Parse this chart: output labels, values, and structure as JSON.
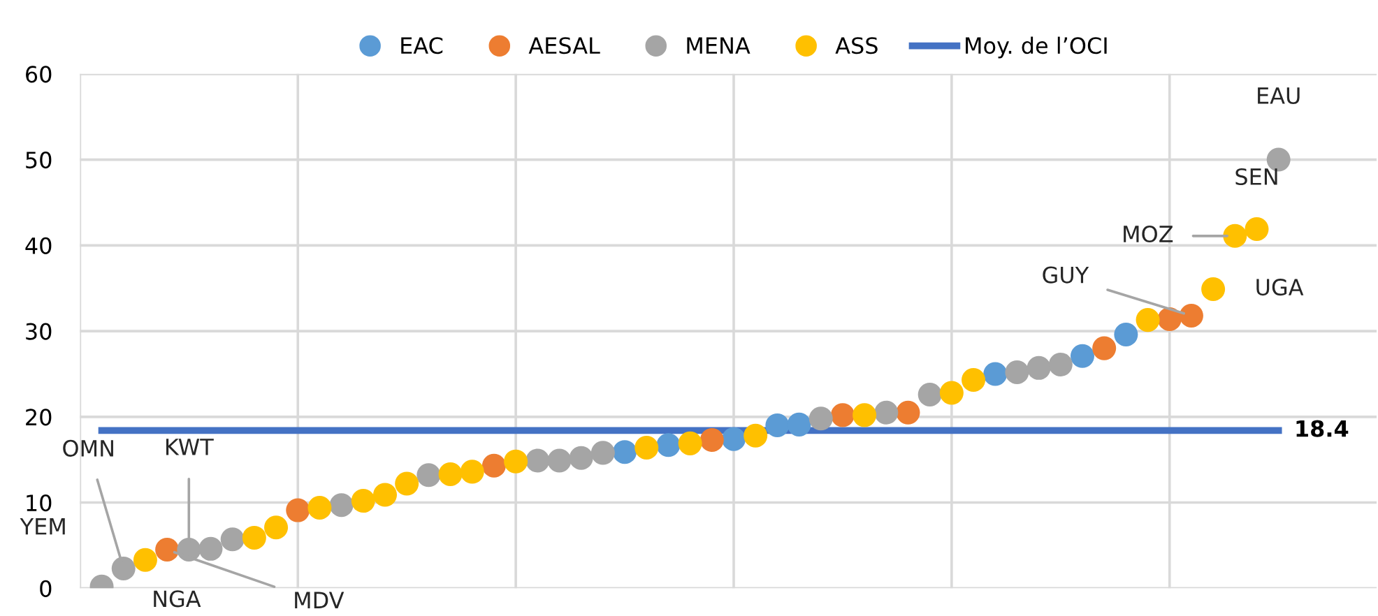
{
  "chart_data": {
    "type": "scatter",
    "marker": "circle",
    "grid": true,
    "legend": "top",
    "categories": [
      null,
      null,
      null,
      null,
      null,
      null,
      null,
      null,
      null,
      null,
      null,
      null,
      null,
      null,
      null,
      null,
      null,
      null,
      null,
      null,
      null,
      null,
      null,
      null,
      null,
      null,
      null,
      null,
      null,
      null,
      null,
      null,
      null,
      null,
      null,
      null,
      null,
      null,
      null,
      null,
      null,
      null,
      null,
      null,
      null,
      null,
      null,
      null,
      null,
      null,
      null,
      null,
      null,
      null,
      null
    ],
    "ylim": [
      0,
      60
    ],
    "yticks": [
      0,
      10,
      20,
      30,
      40,
      50,
      60
    ],
    "series": [
      {
        "name": "EAC",
        "color": "#5b9bd5",
        "values": [
          null,
          null,
          null,
          null,
          null,
          null,
          null,
          null,
          null,
          null,
          null,
          null,
          null,
          null,
          null,
          null,
          null,
          null,
          null,
          null,
          null,
          null,
          null,
          null,
          15.9,
          null,
          16.7,
          null,
          null,
          17.4,
          null,
          19.0,
          19.1,
          null,
          null,
          null,
          null,
          null,
          null,
          null,
          null,
          25.0,
          null,
          null,
          null,
          27.1,
          null,
          29.6,
          null,
          null,
          null,
          null,
          null,
          null,
          null
        ]
      },
      {
        "name": "AESAL",
        "color": "#ed7d31",
        "values": [
          null,
          null,
          null,
          4.5,
          null,
          null,
          null,
          null,
          null,
          9.1,
          null,
          null,
          null,
          null,
          null,
          null,
          null,
          null,
          14.3,
          null,
          null,
          null,
          null,
          null,
          null,
          null,
          null,
          null,
          17.3,
          null,
          null,
          null,
          null,
          null,
          20.2,
          null,
          null,
          20.5,
          null,
          null,
          null,
          null,
          null,
          null,
          null,
          null,
          28.0,
          null,
          null,
          31.4,
          31.8,
          null,
          null,
          null,
          null
        ],
        "value_labels": [
          null,
          null,
          null,
          "MDV",
          null,
          null,
          null,
          null,
          null,
          null,
          null,
          null,
          null,
          null,
          null,
          null,
          null,
          null,
          null,
          null,
          null,
          null,
          null,
          null,
          null,
          null,
          null,
          null,
          null,
          null,
          null,
          null,
          null,
          null,
          null,
          null,
          null,
          null,
          null,
          null,
          null,
          null,
          null,
          null,
          null,
          null,
          null,
          null,
          null,
          null,
          "GUY",
          null,
          null,
          null,
          null
        ]
      },
      {
        "name": "MENA",
        "color": "#a5a5a5",
        "values": [
          0.2,
          2.3,
          null,
          null,
          4.5,
          4.6,
          5.7,
          null,
          null,
          null,
          null,
          9.7,
          null,
          null,
          null,
          13.2,
          null,
          null,
          null,
          null,
          14.9,
          14.9,
          15.2,
          15.8,
          null,
          null,
          null,
          null,
          null,
          null,
          null,
          null,
          null,
          19.8,
          null,
          null,
          20.5,
          null,
          22.6,
          null,
          null,
          null,
          25.2,
          25.7,
          26.1,
          null,
          null,
          null,
          null,
          null,
          null,
          null,
          null,
          null,
          50.0
        ],
        "value_labels": [
          "YEM",
          "OMN",
          null,
          null,
          "KWT",
          null,
          null,
          null,
          null,
          null,
          null,
          null,
          null,
          null,
          null,
          null,
          null,
          null,
          null,
          null,
          null,
          null,
          null,
          null,
          null,
          null,
          null,
          null,
          null,
          null,
          null,
          null,
          null,
          null,
          null,
          null,
          null,
          null,
          null,
          null,
          null,
          null,
          null,
          null,
          null,
          null,
          null,
          null,
          null,
          null,
          null,
          null,
          null,
          null,
          "EAU"
        ]
      },
      {
        "name": "ASS",
        "color": "#ffc000",
        "values": [
          null,
          null,
          3.3,
          null,
          null,
          null,
          null,
          5.9,
          7.1,
          null,
          9.4,
          null,
          10.2,
          10.9,
          12.2,
          null,
          13.3,
          13.6,
          null,
          14.8,
          null,
          null,
          null,
          null,
          null,
          16.4,
          null,
          16.9,
          null,
          null,
          17.8,
          null,
          null,
          null,
          null,
          20.2,
          null,
          null,
          null,
          22.8,
          24.3,
          null,
          null,
          null,
          null,
          null,
          null,
          null,
          31.3,
          null,
          null,
          34.9,
          41.1,
          41.9,
          null
        ],
        "value_labels": [
          null,
          null,
          "NGA",
          null,
          null,
          null,
          null,
          null,
          null,
          null,
          null,
          null,
          null,
          null,
          null,
          null,
          null,
          null,
          null,
          null,
          null,
          null,
          null,
          null,
          null,
          null,
          null,
          null,
          null,
          null,
          null,
          null,
          null,
          null,
          null,
          null,
          null,
          null,
          null,
          null,
          null,
          null,
          null,
          null,
          null,
          null,
          null,
          null,
          null,
          null,
          null,
          "UGA",
          "MOZ",
          "SEN",
          null
        ]
      },
      {
        "name": "Moy. de l’OCI",
        "type": "line",
        "marker": "none",
        "color": "#4472c4",
        "values": [
          18.4,
          18.4,
          18.4,
          18.4,
          18.4,
          18.4,
          18.4,
          18.4,
          18.4,
          18.4,
          18.4,
          18.4,
          18.4,
          18.4,
          18.4,
          18.4,
          18.4,
          18.4,
          18.4,
          18.4,
          18.4,
          18.4,
          18.4,
          18.4,
          18.4,
          18.4,
          18.4,
          18.4,
          18.4,
          18.4,
          null,
          18.4,
          18.4,
          18.4,
          18.4,
          18.4,
          18.4,
          18.4,
          18.4,
          18.4,
          18.4,
          18.4,
          18.4,
          18.4,
          18.4,
          18.4,
          18.4,
          18.4,
          18.4,
          18.4,
          18.4,
          18.4,
          18.4,
          18.4,
          18.4
        ],
        "value_labels": [
          null,
          null,
          null,
          null,
          null,
          null,
          null,
          null,
          null,
          null,
          null,
          null,
          null,
          null,
          null,
          null,
          null,
          null,
          null,
          null,
          null,
          null,
          null,
          null,
          null,
          null,
          null,
          null,
          null,
          null,
          null,
          null,
          null,
          null,
          null,
          null,
          null,
          null,
          null,
          null,
          null,
          null,
          null,
          null,
          null,
          null,
          null,
          null,
          null,
          null,
          null,
          null,
          null,
          null,
          "18.4"
        ]
      }
    ]
  }
}
